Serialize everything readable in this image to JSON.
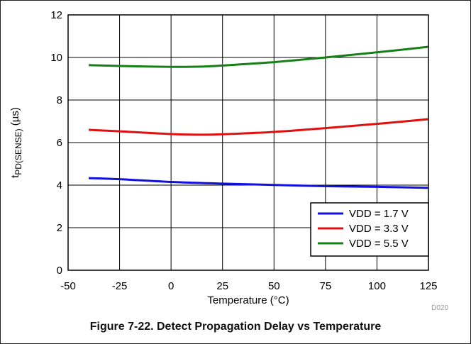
{
  "figure_caption": "Figure 7-22. Detect Propagation Delay vs Temperature",
  "figure_code": "D020",
  "chart_data": {
    "type": "line",
    "title": "",
    "xlabel": "Temperature (°C)",
    "ylabel": {
      "main": "t",
      "subscript": "PD(SENSE)",
      "unit": " (µs)"
    },
    "xlim": [
      -50,
      125
    ],
    "ylim": [
      0,
      12
    ],
    "xticks": [
      -50,
      -25,
      0,
      25,
      50,
      75,
      100,
      125
    ],
    "yticks": [
      0,
      2,
      4,
      6,
      8,
      10,
      12
    ],
    "grid": true,
    "legend_position": "bottom-right",
    "series": [
      {
        "name": "VDD = 1.7 V",
        "color": "#1010e0",
        "x": [
          -40,
          -25,
          0,
          25,
          50,
          75,
          100,
          125
        ],
        "y": [
          4.33,
          4.28,
          4.15,
          4.07,
          4.01,
          3.95,
          3.92,
          3.87
        ]
      },
      {
        "name": "VDD = 3.3 V",
        "color": "#e01010",
        "x": [
          -40,
          -25,
          0,
          15,
          25,
          50,
          75,
          100,
          125
        ],
        "y": [
          6.6,
          6.53,
          6.4,
          6.37,
          6.39,
          6.5,
          6.68,
          6.88,
          7.1
        ]
      },
      {
        "name": "VDD = 5.5 V",
        "color": "#168016",
        "x": [
          -40,
          -25,
          0,
          15,
          25,
          50,
          75,
          100,
          125
        ],
        "y": [
          9.64,
          9.6,
          9.56,
          9.57,
          9.62,
          9.78,
          10.0,
          10.24,
          10.5
        ]
      }
    ]
  }
}
